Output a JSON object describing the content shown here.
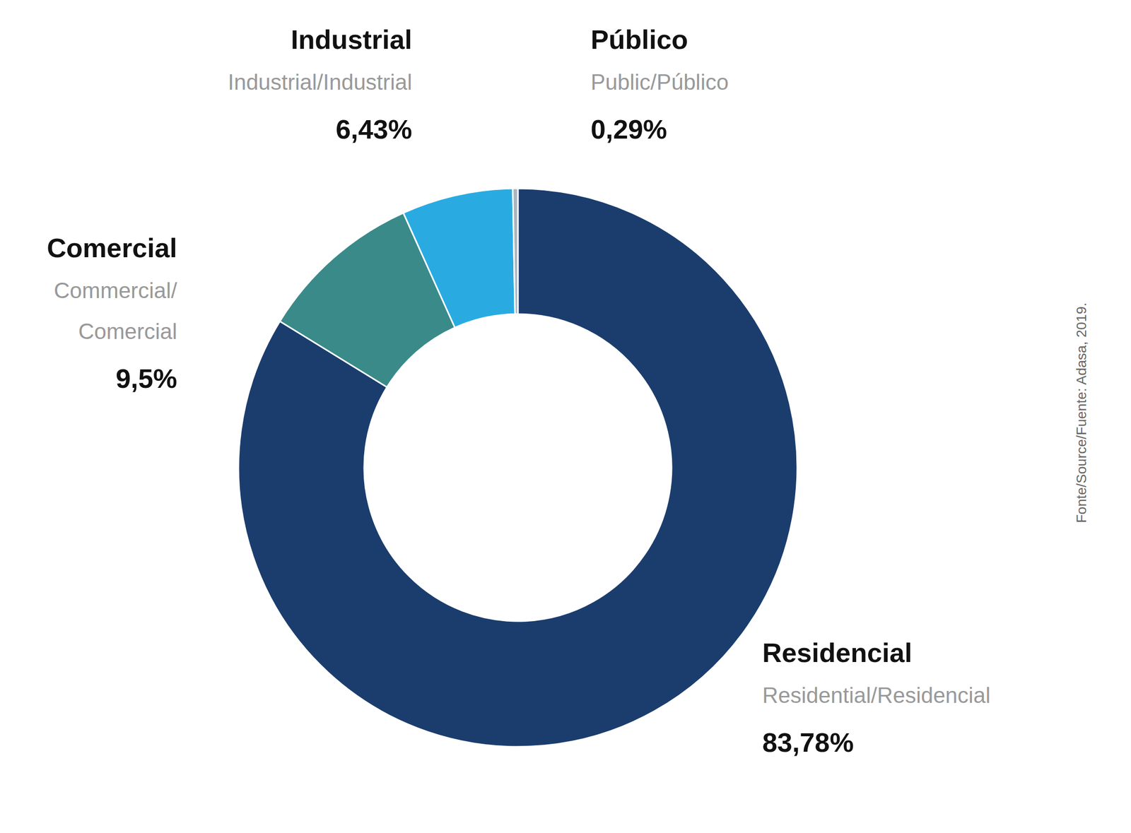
{
  "chart_data": {
    "type": "pie",
    "categories": [
      "Residencial",
      "Comercial",
      "Industrial",
      "Público"
    ],
    "annotations": [
      "Residential/Residencial",
      "Commercial/\nComercial",
      "Industrial/Industrial",
      "Public/Público"
    ],
    "values": [
      83.78,
      9.5,
      6.43,
      0.29
    ],
    "value_labels": [
      "83,78%",
      "9,5%",
      "6,43%",
      "0,29%"
    ],
    "colors": [
      "#1b3d6e",
      "#3a8a8a",
      "#29abe2",
      "#a8b4be"
    ],
    "source": "Fonte/Source/Fuente: Adasa, 2019."
  }
}
